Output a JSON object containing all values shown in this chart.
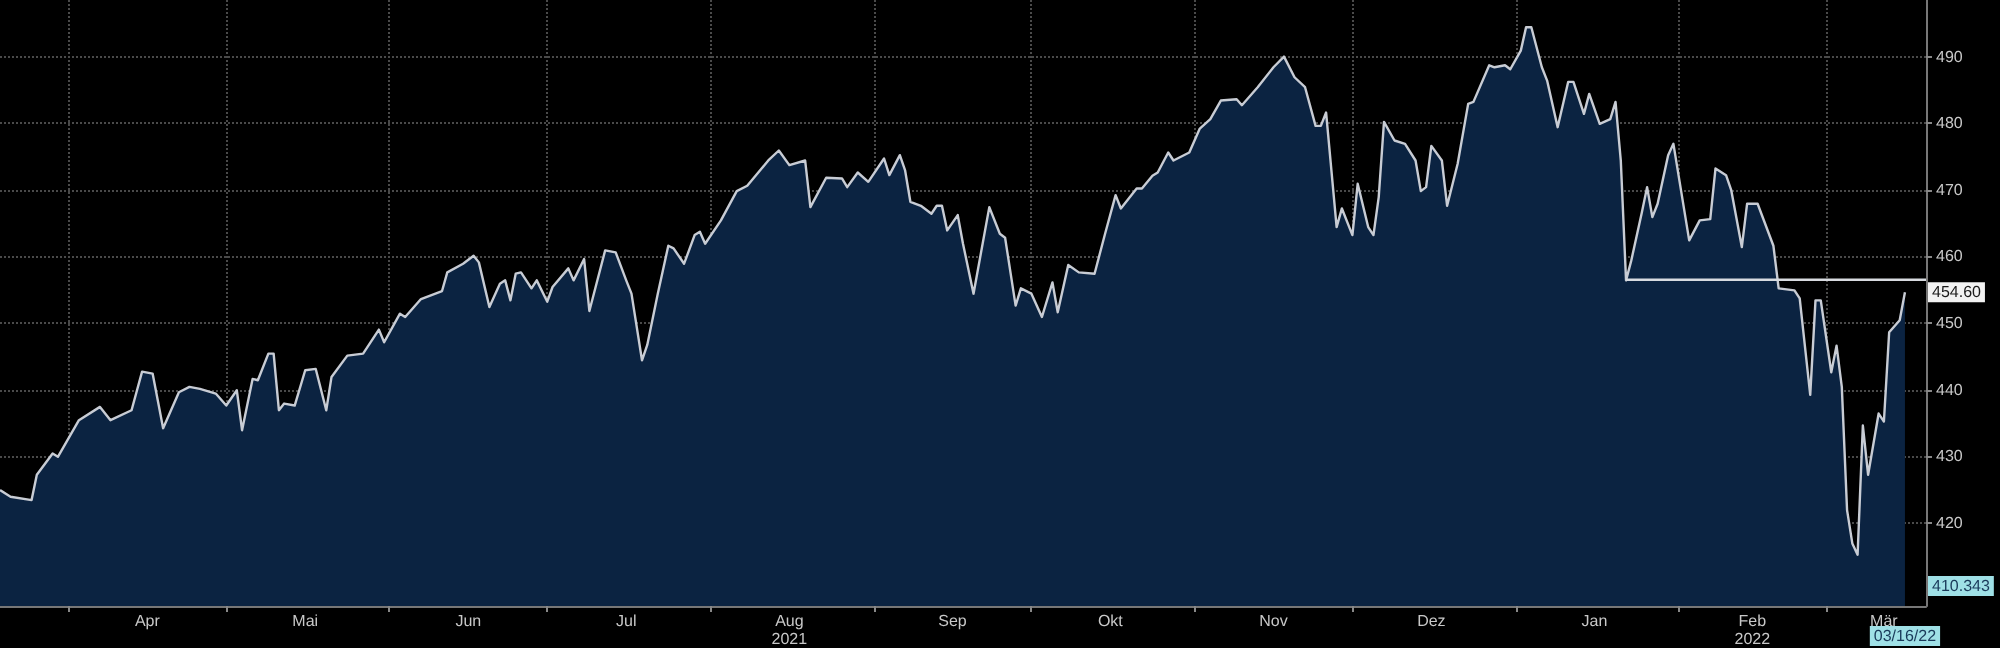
{
  "chart_data": {
    "type": "area",
    "marker": "none",
    "line_style": "solid",
    "grid": true,
    "xlim": [
      "2021-03-19",
      "2022-03-20"
    ],
    "xticks": [
      {
        "value": "2021-04-01",
        "label": null
      },
      {
        "value": "2021-04-16",
        "label": "Apr"
      },
      {
        "value": "2021-05-01",
        "label": null
      },
      {
        "value": "2021-05-16",
        "label": "Mai"
      },
      {
        "value": "2021-06-01",
        "label": null
      },
      {
        "value": "2021-06-16",
        "label": "Jun"
      },
      {
        "value": "2021-07-01",
        "label": null
      },
      {
        "value": "2021-07-16",
        "label": "Jul"
      },
      {
        "value": "2021-08-01",
        "label": null
      },
      {
        "value": "2021-08-16",
        "label": "Aug\n2021"
      },
      {
        "value": "2021-09-01",
        "label": null
      },
      {
        "value": "2021-09-16",
        "label": "Sep"
      },
      {
        "value": "2021-10-01",
        "label": null
      },
      {
        "value": "2021-10-16",
        "label": "Okt"
      },
      {
        "value": "2021-11-01",
        "label": null
      },
      {
        "value": "2021-11-16",
        "label": "Nov"
      },
      {
        "value": "2021-12-01",
        "label": null
      },
      {
        "value": "2021-12-16",
        "label": "Dez"
      },
      {
        "value": "2022-01-01",
        "label": null
      },
      {
        "value": "2022-01-16",
        "label": "Jan"
      },
      {
        "value": "2022-02-01",
        "label": null
      },
      {
        "value": "2022-02-15",
        "label": "Feb\n2022"
      },
      {
        "value": "2022-03-01",
        "label": null
      },
      {
        "value": "2022-03-12",
        "label": "Mär"
      }
    ],
    "ylim": [
      407.5,
      498.5
    ],
    "yticks": [
      420,
      430,
      440,
      450,
      460,
      470,
      480,
      490
    ],
    "series": [
      {
        "color": "#c8ccd4",
        "x": [
          "2021-03-19",
          "2021-03-21",
          "2021-03-25",
          "2021-03-26",
          "2021-03-29",
          "2021-03-30",
          "2021-04-03",
          "2021-04-07",
          "2021-04-09",
          "2021-04-13",
          "2021-04-15",
          "2021-04-17",
          "2021-04-19",
          "2021-04-22",
          "2021-04-24",
          "2021-04-26",
          "2021-04-29",
          "2021-05-01",
          "2021-05-03",
          "2021-05-04",
          "2021-05-06",
          "2021-05-07",
          "2021-05-09",
          "2021-05-10",
          "2021-05-11",
          "2021-05-12",
          "2021-05-14",
          "2021-05-16",
          "2021-05-18",
          "2021-05-20",
          "2021-05-21",
          "2021-05-24",
          "2021-05-27",
          "2021-05-30",
          "2021-05-31",
          "2021-06-03",
          "2021-06-04",
          "2021-06-07",
          "2021-06-11",
          "2021-06-12",
          "2021-06-15",
          "2021-06-17",
          "2021-06-18",
          "2021-06-20",
          "2021-06-22",
          "2021-06-23",
          "2021-06-24",
          "2021-06-25",
          "2021-06-26",
          "2021-06-28",
          "2021-06-29",
          "2021-07-01",
          "2021-07-02",
          "2021-07-05",
          "2021-07-06",
          "2021-07-08",
          "2021-07-09",
          "2021-07-12",
          "2021-07-14",
          "2021-07-16",
          "2021-07-17",
          "2021-07-19",
          "2021-07-20",
          "2021-07-22",
          "2021-07-24",
          "2021-07-25",
          "2021-07-27",
          "2021-07-29",
          "2021-07-30",
          "2021-07-31",
          "2021-08-03",
          "2021-08-06",
          "2021-08-08",
          "2021-08-12",
          "2021-08-14",
          "2021-08-16",
          "2021-08-19",
          "2021-08-20",
          "2021-08-23",
          "2021-08-26",
          "2021-08-27",
          "2021-08-29",
          "2021-08-31",
          "2021-09-03",
          "2021-09-04",
          "2021-09-06",
          "2021-09-07",
          "2021-09-08",
          "2021-09-10",
          "2021-09-12",
          "2021-09-13",
          "2021-09-14",
          "2021-09-15",
          "2021-09-17",
          "2021-09-18",
          "2021-09-20",
          "2021-09-23",
          "2021-09-25",
          "2021-09-26",
          "2021-09-28",
          "2021-09-29",
          "2021-10-01",
          "2021-10-03",
          "2021-10-05",
          "2021-10-06",
          "2021-10-08",
          "2021-10-10",
          "2021-10-13",
          "2021-10-15",
          "2021-10-17",
          "2021-10-18",
          "2021-10-21",
          "2021-10-22",
          "2021-10-24",
          "2021-10-25",
          "2021-10-27",
          "2021-10-28",
          "2021-10-31",
          "2021-11-02",
          "2021-11-04",
          "2021-11-06",
          "2021-11-09",
          "2021-11-10",
          "2021-11-13",
          "2021-11-16",
          "2021-11-18",
          "2021-11-20",
          "2021-11-22",
          "2021-11-24",
          "2021-11-25",
          "2021-11-26",
          "2021-11-28",
          "2021-11-29",
          "2021-12-01",
          "2021-12-02",
          "2021-12-04",
          "2021-12-05",
          "2021-12-06",
          "2021-12-07",
          "2021-12-09",
          "2021-12-11",
          "2021-12-13",
          "2021-12-14",
          "2021-12-15",
          "2021-12-16",
          "2021-12-18",
          "2021-12-19",
          "2021-12-21",
          "2021-12-23",
          "2021-12-24",
          "2021-12-27",
          "2021-12-28",
          "2021-12-30",
          "2021-12-31",
          "2022-01-02",
          "2022-01-03",
          "2022-01-04",
          "2022-01-06",
          "2022-01-07",
          "2022-01-09",
          "2022-01-11",
          "2022-01-12",
          "2022-01-14",
          "2022-01-15",
          "2022-01-17",
          "2022-01-19",
          "2022-01-20",
          "2022-01-21",
          "2022-01-22",
          "2022-01-23",
          "2022-01-25",
          "2022-01-26",
          "2022-01-27",
          "2022-01-28",
          "2022-01-30",
          "2022-01-31",
          "2022-02-03",
          "2022-02-05",
          "2022-02-07",
          "2022-02-08",
          "2022-02-10",
          "2022-02-11",
          "2022-02-13",
          "2022-02-14",
          "2022-02-16",
          "2022-02-19",
          "2022-02-20",
          "2022-02-23",
          "2022-02-24",
          "2022-02-26",
          "2022-02-27",
          "2022-02-28",
          "2022-03-02",
          "2022-03-03",
          "2022-03-04",
          "2022-03-05",
          "2022-03-06",
          "2022-03-07",
          "2022-03-08",
          "2022-03-09",
          "2022-03-11",
          "2022-03-12",
          "2022-03-13",
          "2022-03-15",
          "2022-03-16"
        ],
        "values": [
          424.9,
          423.9,
          423.4,
          427.2,
          430.4,
          429.9,
          435.4,
          437.4,
          435.4,
          436.9,
          442.7,
          442.4,
          434.2,
          439.6,
          440.4,
          440.1,
          439.4,
          437.6,
          439.9,
          433.9,
          441.6,
          441.4,
          445.4,
          445.4,
          436.9,
          437.9,
          437.6,
          442.9,
          443.1,
          436.9,
          441.9,
          445.1,
          445.4,
          449,
          447.1,
          451.4,
          450.9,
          453.6,
          454.8,
          457.6,
          458.9,
          460.1,
          459.1,
          452.4,
          455.9,
          456.4,
          453.4,
          457.4,
          457.6,
          455.2,
          456.4,
          453.2,
          455.4,
          458.2,
          456.4,
          459.6,
          451.8,
          460.9,
          460.6,
          456.4,
          454.4,
          444.4,
          446.7,
          454.4,
          461.6,
          461.2,
          458.9,
          463.2,
          463.7,
          461.9,
          465.4,
          469.8,
          470.6,
          474.4,
          475.9,
          473.7,
          474.4,
          467.4,
          471.8,
          471.7,
          470.4,
          472.6,
          471.2,
          474.7,
          472.2,
          475.2,
          472.9,
          468.2,
          467.6,
          466.4,
          467.6,
          467.6,
          463.9,
          466.2,
          461.9,
          454.4,
          467.4,
          463.4,
          462.8,
          452.6,
          455.2,
          454.4,
          450.9,
          456.1,
          451.6,
          458.7,
          457.6,
          457.4,
          463.4,
          469.2,
          467.2,
          470.2,
          470.2,
          472.1,
          472.6,
          475.6,
          474.4,
          475.6,
          479.2,
          480.6,
          483.4,
          483.6,
          482.7,
          485.4,
          488.4,
          490,
          486.9,
          485.4,
          479.6,
          479.6,
          481.6,
          464.4,
          467.2,
          463.2,
          470.9,
          464.4,
          463.2,
          468.9,
          480.2,
          477.4,
          476.9,
          474.4,
          469.8,
          470.4,
          476.6,
          474.4,
          467.6,
          473.9,
          482.9,
          483.2,
          488.7,
          488.4,
          488.7,
          488.1,
          490.9,
          494.4,
          494.4,
          488.4,
          486.4,
          479.4,
          486.2,
          486.2,
          481.4,
          484.4,
          479.9,
          480.6,
          483.2,
          474.4,
          456.4,
          459.4,
          466.6,
          470.4,
          465.9,
          467.9,
          475.2,
          476.9,
          462.4,
          465.4,
          465.6,
          473.2,
          472.2,
          469.9,
          461.4,
          467.9,
          467.9,
          461.6,
          455.2,
          454.9,
          453.7,
          439.2,
          453.4,
          453.4,
          442.6,
          446.6,
          440.4,
          421.9,
          416.9,
          415.2,
          434.6,
          427.2,
          436.4,
          435.2,
          448.6,
          450.4,
          454.6
        ]
      },
      {
        "type": "line",
        "color": "#d8dbe0",
        "x": [
          "2022-01-22",
          "2022-03-20"
        ],
        "values": [
          456.5,
          456.5
        ]
      }
    ],
    "annotations": [
      {
        "text": "454.60",
        "y": 454.6
      },
      "410.343",
      "03/16/22"
    ]
  }
}
